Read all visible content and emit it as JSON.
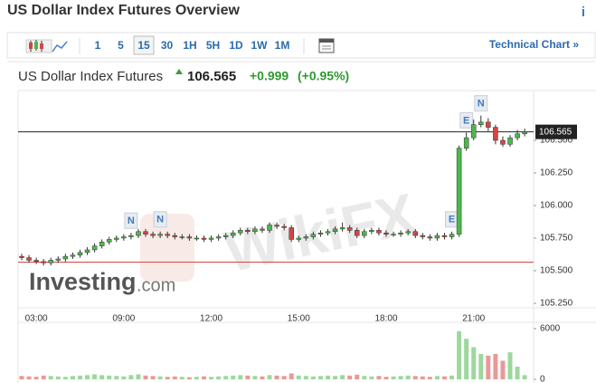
{
  "header": {
    "title": "US Dollar Index Futures Overview",
    "info": "i"
  },
  "toolbar": {
    "intervals": [
      "1",
      "5",
      "15",
      "30",
      "1H",
      "5H",
      "1D",
      "1W",
      "1M"
    ],
    "selected": "15",
    "technical_link": "Technical Chart »"
  },
  "quote": {
    "name": "US Dollar Index Futures",
    "change": "+0.999",
    "change_pct": "(+0.95%)"
  },
  "chart_data": {
    "type": "candlestick",
    "watermark": "WikiFX",
    "logo": "Investing",
    "logo_suffix": ".com",
    "categories": [
      null,
      null,
      "03:00",
      null,
      null,
      null,
      null,
      null,
      null,
      null,
      null,
      null,
      null,
      null,
      "09:00",
      null,
      null,
      null,
      null,
      null,
      null,
      null,
      null,
      null,
      null,
      null,
      "12:00",
      null,
      null,
      null,
      null,
      null,
      null,
      null,
      null,
      null,
      null,
      null,
      "15:00",
      null,
      null,
      null,
      null,
      null,
      null,
      null,
      null,
      null,
      null,
      null,
      "18:00",
      null,
      null,
      null,
      null,
      null,
      null,
      null,
      null,
      null,
      null,
      null,
      "21:00",
      null,
      null,
      null,
      null,
      null,
      null,
      null
    ],
    "open": [
      105.61,
      105.6,
      105.58,
      105.57,
      105.56,
      105.58,
      105.59,
      105.61,
      105.62,
      105.64,
      105.66,
      105.69,
      105.72,
      105.74,
      105.75,
      105.76,
      105.77,
      105.8,
      105.78,
      105.77,
      105.78,
      105.77,
      105.76,
      105.76,
      105.75,
      105.75,
      105.74,
      105.75,
      105.76,
      105.77,
      105.79,
      105.81,
      105.8,
      105.82,
      105.81,
      105.85,
      105.84,
      105.83,
      105.74,
      105.75,
      105.76,
      105.78,
      105.79,
      105.8,
      105.82,
      105.83,
      105.81,
      105.77,
      105.8,
      105.81,
      105.79,
      105.78,
      105.78,
      105.79,
      105.8,
      105.77,
      105.76,
      105.75,
      105.77,
      105.76,
      105.78,
      106.44,
      106.52,
      106.62,
      106.64,
      106.6,
      106.5,
      106.47,
      106.52,
      106.55
    ],
    "high": [
      105.63,
      105.62,
      105.6,
      105.59,
      105.6,
      105.61,
      105.63,
      105.64,
      105.66,
      105.68,
      105.71,
      105.74,
      105.76,
      105.77,
      105.78,
      105.79,
      105.82,
      105.82,
      105.8,
      105.8,
      105.8,
      105.79,
      105.78,
      105.78,
      105.77,
      105.77,
      105.77,
      105.78,
      105.79,
      105.81,
      105.83,
      105.83,
      105.84,
      105.84,
      105.87,
      105.87,
      105.86,
      105.85,
      105.77,
      105.78,
      105.8,
      105.81,
      105.82,
      105.84,
      105.87,
      105.85,
      105.83,
      105.82,
      105.83,
      105.83,
      105.81,
      105.8,
      105.81,
      105.82,
      105.82,
      105.79,
      105.78,
      105.79,
      105.79,
      105.8,
      106.46,
      106.56,
      106.66,
      106.69,
      106.67,
      106.62,
      106.53,
      106.54,
      106.58,
      106.59
    ],
    "low": [
      105.58,
      105.56,
      105.55,
      105.54,
      105.54,
      105.56,
      105.57,
      105.59,
      105.6,
      105.62,
      105.64,
      105.67,
      105.7,
      105.72,
      105.73,
      105.74,
      105.75,
      105.76,
      105.75,
      105.75,
      105.75,
      105.74,
      105.74,
      105.73,
      105.73,
      105.72,
      105.72,
      105.73,
      105.74,
      105.75,
      105.77,
      105.78,
      105.78,
      105.79,
      105.79,
      105.82,
      105.81,
      105.72,
      105.72,
      105.73,
      105.74,
      105.76,
      105.77,
      105.78,
      105.8,
      105.79,
      105.75,
      105.75,
      105.78,
      105.77,
      105.76,
      105.76,
      105.76,
      105.77,
      105.75,
      105.74,
      105.73,
      105.73,
      105.74,
      105.74,
      105.76,
      106.42,
      106.5,
      106.6,
      106.57,
      106.47,
      106.45,
      106.45,
      106.5,
      106.53
    ],
    "close": [
      105.6,
      105.58,
      105.57,
      105.56,
      105.58,
      105.59,
      105.61,
      105.62,
      105.64,
      105.66,
      105.69,
      105.72,
      105.74,
      105.75,
      105.76,
      105.77,
      105.8,
      105.78,
      105.77,
      105.78,
      105.77,
      105.76,
      105.76,
      105.75,
      105.75,
      105.74,
      105.75,
      105.76,
      105.77,
      105.79,
      105.81,
      105.8,
      105.82,
      105.81,
      105.85,
      105.84,
      105.83,
      105.74,
      105.75,
      105.76,
      105.78,
      105.79,
      105.8,
      105.82,
      105.83,
      105.81,
      105.77,
      105.8,
      105.81,
      105.79,
      105.78,
      105.78,
      105.79,
      105.8,
      105.77,
      105.76,
      105.75,
      105.77,
      105.76,
      105.78,
      106.44,
      106.52,
      106.62,
      106.64,
      106.6,
      106.5,
      106.47,
      106.52,
      106.55,
      106.565
    ],
    "volume": [
      400,
      350,
      300,
      450,
      400,
      350,
      300,
      400,
      450,
      500,
      600,
      500,
      450,
      400,
      350,
      500,
      600,
      450,
      400,
      350,
      300,
      350,
      300,
      250,
      300,
      350,
      300,
      350,
      400,
      450,
      500,
      450,
      400,
      350,
      500,
      450,
      400,
      700,
      450,
      400,
      350,
      400,
      450,
      400,
      500,
      450,
      550,
      400,
      350,
      400,
      300,
      350,
      400,
      450,
      400,
      350,
      300,
      400,
      350,
      450,
      5700,
      4800,
      3800,
      3000,
      2800,
      3000,
      2200,
      3200,
      1500,
      500
    ],
    "event_markers": [
      null,
      null,
      null,
      null,
      null,
      null,
      null,
      null,
      null,
      null,
      null,
      null,
      null,
      null,
      null,
      "N",
      null,
      null,
      null,
      "N",
      null,
      null,
      null,
      null,
      null,
      null,
      null,
      null,
      null,
      null,
      null,
      null,
      null,
      null,
      null,
      null,
      null,
      null,
      null,
      null,
      null,
      null,
      null,
      null,
      null,
      null,
      null,
      null,
      null,
      null,
      null,
      null,
      null,
      null,
      null,
      null,
      null,
      null,
      null,
      "E",
      null,
      "E",
      null,
      "N",
      null,
      null,
      null,
      null,
      null,
      null
    ],
    "up_color": "#4cb84c",
    "down_color": "#d64545",
    "last_price": 106.565,
    "reference_line": 105.566,
    "ylim": [
      105.215,
      106.882
    ],
    "yticks": [
      {
        "value": 106.5,
        "label": "106.500"
      },
      {
        "value": 106.25,
        "label": "106.250"
      },
      {
        "value": 106.0,
        "label": "106.000"
      },
      {
        "value": 105.75,
        "label": "105.750"
      },
      {
        "value": 105.5,
        "label": "105.500"
      },
      {
        "value": 105.25,
        "label": "105.250"
      }
    ],
    "volume_ylim": [
      0,
      6740
    ],
    "volume_ticks": [
      6000,
      0
    ]
  }
}
